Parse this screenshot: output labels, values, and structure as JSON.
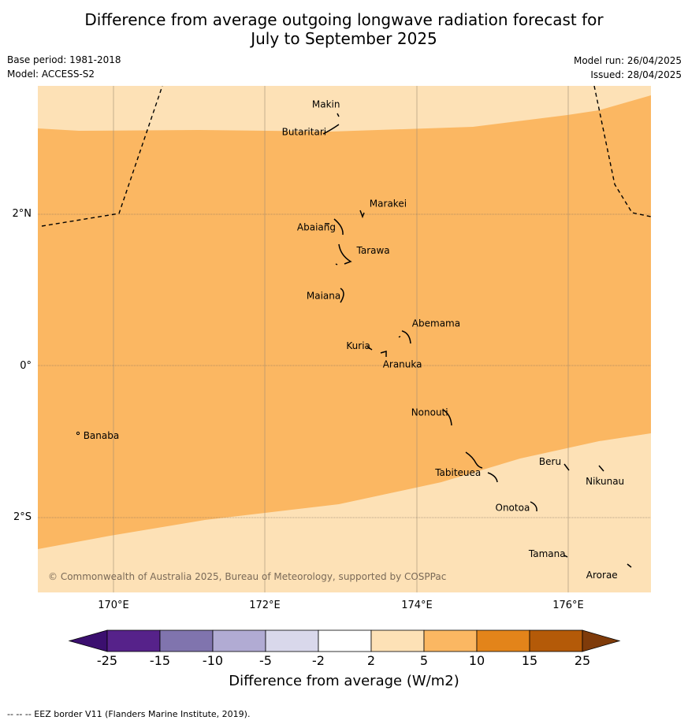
{
  "title_line1": "Difference from average outgoing longwave radiation forecast for",
  "title_line2": "July to September 2025",
  "base_period": "Base period: 1981-2018",
  "model": "Model: ACCESS-S2",
  "model_run": "Model run: 26/04/2025",
  "issued": "Issued: 28/04/2025",
  "map": {
    "lon_range": [
      169,
      177.1
    ],
    "lat_range": [
      -3.0,
      3.7
    ],
    "lon_ticks": [
      "170°E",
      "172°E",
      "174°E",
      "176°E"
    ],
    "lat_ticks": [
      "2°N",
      "0°",
      "2°S"
    ],
    "copyright": "© Commonwealth of Australia 2025, Bureau of Meteorology, supported by COSPPac",
    "places": [
      {
        "name": "Makin",
        "lon": 173.0,
        "lat": 3.35
      },
      {
        "name": "Butaritari",
        "lon": 172.8,
        "lat": 3.07
      },
      {
        "name": "Marakei",
        "lon": 173.3,
        "lat": 2.02
      },
      {
        "name": "Abaiang",
        "lon": 173.0,
        "lat": 1.82
      },
      {
        "name": "Tarawa",
        "lon": 173.1,
        "lat": 1.38
      },
      {
        "name": "Maiana",
        "lon": 173.0,
        "lat": 0.93
      },
      {
        "name": "Abemama",
        "lon": 173.85,
        "lat": 0.4
      },
      {
        "name": "Kuria",
        "lon": 173.4,
        "lat": 0.23
      },
      {
        "name": "Aranuka",
        "lon": 173.6,
        "lat": 0.17
      },
      {
        "name": "Nonouti",
        "lon": 174.4,
        "lat": -0.65
      },
      {
        "name": "Banaba",
        "lon": 169.55,
        "lat": -0.87
      },
      {
        "name": "Tabiteuea",
        "lon": 174.8,
        "lat": -1.3
      },
      {
        "name": "Beru",
        "lon": 175.98,
        "lat": -1.33
      },
      {
        "name": "Nikunau",
        "lon": 176.45,
        "lat": -1.37
      },
      {
        "name": "Onotoa",
        "lon": 175.55,
        "lat": -1.8
      },
      {
        "name": "Tamana",
        "lon": 175.98,
        "lat": -2.5
      },
      {
        "name": "Arorae",
        "lon": 176.82,
        "lat": -2.65
      }
    ]
  },
  "colorbar": {
    "ticks": [
      "-25",
      "-15",
      "-10",
      "-5",
      "-2",
      "2",
      "5",
      "10",
      "15",
      "25"
    ],
    "colors": [
      "#3b0f6f",
      "#56228a",
      "#8074ae",
      "#b1abd3",
      "#d9d8eb",
      "#ffffff",
      "#fde1b6",
      "#fbb762",
      "#e3841a",
      "#b45a08",
      "#7f3b0a"
    ],
    "label": "Difference from average (W/m2)"
  },
  "footer": "--  --  -- EEZ border V11 (Flanders Marine Institute, 2019)."
}
